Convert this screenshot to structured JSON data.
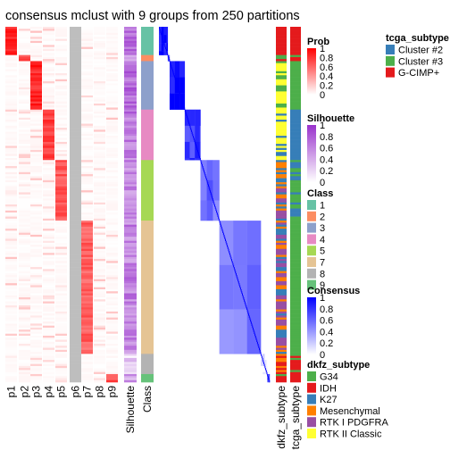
{
  "title": "consensus mclust with 9 groups from 250 partitions",
  "chart_data": {
    "type": "heatmap",
    "title": "consensus mclust with 9 groups from 250 partitions",
    "prob_columns": [
      "p1",
      "p2",
      "p3",
      "p4",
      "p5",
      "p6",
      "p7",
      "p8",
      "p9"
    ],
    "column_labels": [
      "Silhouette",
      "Class",
      "dkfz_subtype",
      "tcga_subtype"
    ],
    "class_order": [
      1,
      2,
      3,
      4,
      5,
      7,
      8,
      9
    ],
    "class_sizes": [
      14,
      3,
      24,
      25,
      30,
      66,
      10,
      4
    ],
    "class_prob_column": [
      "p1",
      "p2",
      "p3",
      "p4",
      "p5",
      "p7",
      "p6",
      "p9"
    ],
    "class_mean_silhouette": [
      0.75,
      0.4,
      0.72,
      0.65,
      0.55,
      0.6,
      0.2,
      0.45
    ],
    "class_within_consensus": [
      0.95,
      0.7,
      0.95,
      0.75,
      0.55,
      0.5,
      0.05,
      0.6
    ],
    "legends": {
      "prob": {
        "title": "Prob",
        "ticks": [
          "1",
          "0.8",
          "0.6",
          "0.4",
          "0.2",
          "0"
        ]
      },
      "silhouette": {
        "title": "Silhouette",
        "ticks": [
          "1",
          "0.8",
          "0.6",
          "0.4",
          "0.2",
          "0"
        ]
      },
      "class": {
        "title": "Class",
        "items": [
          {
            "label": "1",
            "color": "#66c2a5"
          },
          {
            "label": "2",
            "color": "#fc8d62"
          },
          {
            "label": "3",
            "color": "#8da0cb"
          },
          {
            "label": "4",
            "color": "#e78ac3"
          },
          {
            "label": "5",
            "color": "#a6d854"
          },
          {
            "label": "7",
            "color": "#e5c494"
          },
          {
            "label": "8",
            "color": "#b3b3b3"
          },
          {
            "label": "9",
            "color": "#66c27a"
          }
        ]
      },
      "consensus": {
        "title": "Consensus",
        "ticks": [
          "1",
          "0.8",
          "0.6",
          "0.4",
          "0.2",
          "0"
        ]
      },
      "dkfz_subtype": {
        "title": "dkfz_subtype",
        "items": [
          {
            "label": "G34",
            "color": "#4daf4a"
          },
          {
            "label": "IDH",
            "color": "#e41a1c"
          },
          {
            "label": "K27",
            "color": "#377eb8"
          },
          {
            "label": "Mesenchymal",
            "color": "#ff7f00"
          },
          {
            "label": "RTK I PDGFRA",
            "color": "#984ea3"
          },
          {
            "label": "RTK II Classic",
            "color": "#ffff33"
          }
        ]
      },
      "tcga_subtype": {
        "title": "tcga_subtype",
        "items": [
          {
            "label": "Cluster #2",
            "color": "#377eb8"
          },
          {
            "label": "Cluster #3",
            "color": "#4daf4a"
          },
          {
            "label": "G-CIMP+",
            "color": "#e41a1c"
          }
        ]
      }
    },
    "colors": {
      "prob_high": "#ff0000",
      "prob_low": "#ffffff",
      "silhouette_high": "#9932cc",
      "consensus_high": "#0000ff",
      "na_grey": "#bebebe"
    }
  }
}
